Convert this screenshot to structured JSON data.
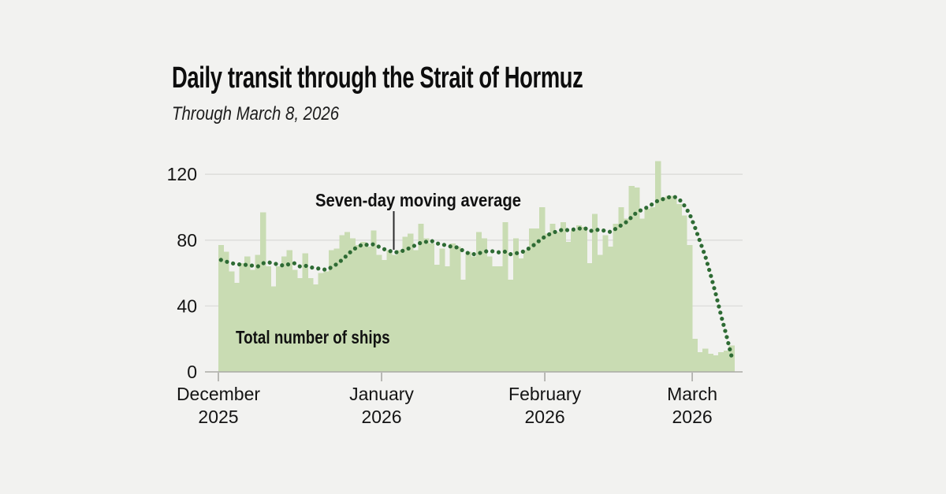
{
  "header": {
    "title": "Daily transit through the Strait of Hormuz",
    "subtitle": "Through March 8, 2026"
  },
  "chart_data": {
    "type": "bar",
    "x_axis": {
      "start_date": "2025-12-01",
      "end_date": "2026-03-08",
      "cadence": "daily",
      "num_days": 98
    },
    "x_ticks": [
      {
        "month": "December",
        "year": "2025",
        "day_index": 0
      },
      {
        "month": "January",
        "year": "2026",
        "day_index": 31
      },
      {
        "month": "February",
        "year": "2026",
        "day_index": 62
      },
      {
        "month": "March",
        "year": "2026",
        "day_index": 90
      }
    ],
    "y_ticks": [
      0,
      40,
      80,
      120
    ],
    "ylim": [
      0,
      130
    ],
    "grid": "horizontal-only",
    "series": [
      {
        "name": "Total number of ships",
        "type": "bar",
        "values": [
          77,
          73,
          61,
          54,
          66,
          70,
          62,
          71,
          97,
          64,
          52,
          64,
          70,
          74,
          62,
          57,
          72,
          57,
          53,
          60,
          61,
          74,
          75,
          83,
          85,
          81,
          77,
          79,
          76,
          86,
          71,
          68,
          74,
          71,
          74,
          82,
          84,
          74,
          90,
          81,
          78,
          65,
          75,
          64,
          78,
          76,
          56,
          73,
          70,
          85,
          81,
          70,
          64,
          64,
          91,
          56,
          81,
          69,
          74,
          87,
          87,
          100,
          84,
          90,
          85,
          91,
          79,
          86,
          89,
          88,
          66,
          96,
          71,
          83,
          76,
          90,
          100,
          93,
          113,
          112,
          93,
          99,
          100,
          128,
          106,
          107,
          107,
          102,
          95,
          77,
          20,
          12,
          14,
          11,
          10,
          12,
          13,
          16
        ]
      },
      {
        "name": "Seven-day moving average",
        "type": "dotted-line",
        "values": [
          68,
          67,
          66,
          65.5,
          65,
          65,
          64.5,
          64,
          66,
          66.5,
          66,
          65,
          64.5,
          65.5,
          66,
          64,
          64.5,
          63.5,
          63,
          62.5,
          62,
          63.5,
          65.5,
          68,
          71,
          74,
          76,
          77.5,
          77,
          77.5,
          76,
          74.5,
          73.5,
          72.5,
          73,
          74,
          75.5,
          77,
          78.5,
          79,
          79.5,
          78,
          77.5,
          76.5,
          76,
          75.5,
          73.5,
          72,
          71.5,
          72,
          73,
          73.5,
          73,
          72.5,
          73,
          71.5,
          72,
          72.5,
          74,
          76,
          78.5,
          81,
          83,
          84.5,
          85.5,
          86.5,
          86,
          86.5,
          87,
          87.5,
          85.5,
          86,
          86.5,
          85.5,
          85,
          87,
          89,
          91,
          94,
          97,
          98.5,
          100,
          102,
          104,
          105,
          106,
          106.5,
          105,
          101,
          96,
          88,
          79,
          70,
          59,
          47,
          34,
          22,
          9
        ]
      }
    ],
    "annotations": {
      "moving_average_label": "Seven-day moving average",
      "total_ships_label": "Total number of ships"
    },
    "colors": {
      "background": "#f2f2f0",
      "bar": "#c9dcb3",
      "line": "#2e6b34",
      "grid": "#dcdcda",
      "axis": "#a9a9a5",
      "text": "#141414"
    }
  }
}
